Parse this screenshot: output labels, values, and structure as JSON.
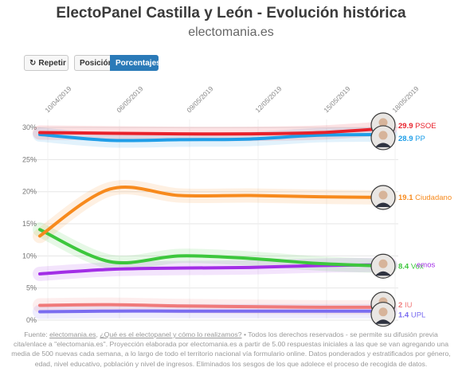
{
  "header": {
    "title": "ElectoPanel Castilla y León - Evolución histórica",
    "subtitle": "electomania.es"
  },
  "controls": {
    "repeat_label": "Repetir",
    "position_label": "Posición",
    "percent_label": "Porcentajes"
  },
  "icons": {
    "repeat": "refresh-icon"
  },
  "chart_data": {
    "type": "line",
    "x": [
      "10/04/2019",
      "06/05/2019",
      "09/05/2019",
      "12/05/2019",
      "15/05/2019",
      "18/05/2019"
    ],
    "x_tick_labels": [
      "10/04/2019",
      "06/05/2019",
      "09/05/2019",
      "12/05/2019",
      "15/05/2019",
      "18/05/2019"
    ],
    "ylim": [
      0,
      31
    ],
    "y_ticks": [
      0,
      5,
      10,
      15,
      20,
      25,
      30
    ],
    "y_tick_labels": [
      "0%",
      "5%",
      "10%",
      "15%",
      "20%",
      "25%",
      "30%"
    ],
    "grid": true,
    "series": [
      {
        "name": "PSOE",
        "color": "#e8212b",
        "label": "29.9 PSOE",
        "values": [
          29.2,
          29.1,
          29.0,
          29.0,
          29.2,
          29.9
        ]
      },
      {
        "name": "PP",
        "color": "#1f9ee8",
        "label": "28.9 PP",
        "values": [
          28.9,
          28.0,
          28.1,
          28.2,
          28.8,
          28.9
        ]
      },
      {
        "name": "Ciudadano",
        "color": "#f78a1d",
        "label": "19.1 Ciudadano",
        "values": [
          13.1,
          20.4,
          19.4,
          19.4,
          19.2,
          19.1
        ]
      },
      {
        "name": "Vox",
        "color": "#3dc73d",
        "label": "8.4 Vox",
        "values": [
          14.1,
          9.1,
          10.0,
          9.6,
          8.8,
          8.4
        ]
      },
      {
        "name": "emos",
        "color": "#a22ee6",
        "label": "emos",
        "values": [
          7.2,
          7.9,
          8.1,
          8.2,
          8.5,
          8.6
        ]
      },
      {
        "name": "IU",
        "color": "#f07a7a",
        "label": "2 IU",
        "values": [
          2.3,
          2.4,
          2.2,
          2.1,
          2.0,
          2.0
        ]
      },
      {
        "name": "UPL",
        "color": "#7a6cf0",
        "label": "1.4 UPL",
        "values": [
          1.3,
          1.4,
          1.4,
          1.4,
          1.4,
          1.4
        ]
      }
    ]
  },
  "footer": {
    "source_prefix": "Fuente: ",
    "source_link": "electomania.es",
    "sep1": ", ",
    "faq_link": "¿Qué es el electopanel y cómo lo realizamos?",
    "text": " • Todos los derechos reservados - se permite su difusión previa cita/enlace a \"electomania.es\". Proyección elaborada por electomania.es a partir de 5.00 respuestas iniciales a las que se van agregando una media de 500 nuevas cada semana, a lo largo de todo el territorio nacional vía formulario online. Datos ponderados y estratificados por género, edad, nivel educativo, población y nivel de ingresos. Eliminados los sesgos de los que adolece el proceso de recogida de datos."
  }
}
